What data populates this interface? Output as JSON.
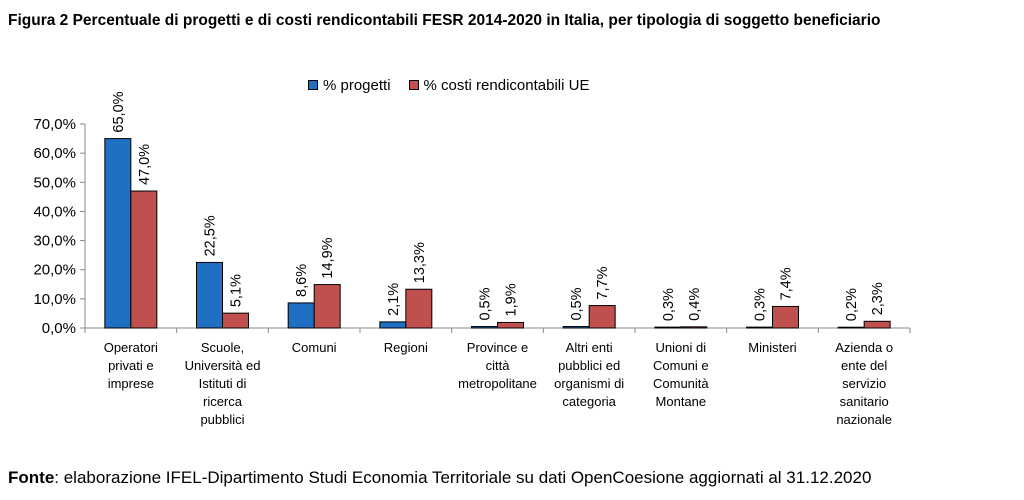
{
  "title": "Figura 2 Percentuale di progetti e di costi rendicontabili FESR 2014-2020 in Italia, per tipologia di soggetto beneficiario",
  "footer": {
    "label": "Fonte",
    "text": ": elaborazione IFEL-Dipartimento Studi Economia Territoriale su dati OpenCoesione aggiornati al 31.12.2020"
  },
  "chart_data": {
    "type": "bar",
    "categories": [
      [
        "Operatori",
        "privati e",
        "imprese"
      ],
      [
        "Scuole,",
        "Università ed",
        "Istituti di",
        "ricerca",
        "pubblici"
      ],
      [
        "Comuni"
      ],
      [
        "Regioni"
      ],
      [
        "Province e",
        "città",
        "metropolitane"
      ],
      [
        "Altri enti",
        "pubblici ed",
        "organismi di",
        "categoria"
      ],
      [
        "Unioni di",
        "Comuni e",
        "Comunità",
        "Montane"
      ],
      [
        "Ministeri"
      ],
      [
        "Azienda o",
        "ente del",
        "servizio",
        "sanitario",
        "nazionale"
      ]
    ],
    "series": [
      {
        "name": "% progetti",
        "color": "#1f6fc3",
        "values": [
          65.0,
          22.5,
          8.6,
          2.1,
          0.5,
          0.5,
          0.3,
          0.3,
          0.2
        ],
        "labels": [
          "65,0%",
          "22,5%",
          "8,6%",
          "2,1%",
          "0,5%",
          "0,5%",
          "0,3%",
          "0,3%",
          "0,2%"
        ]
      },
      {
        "name": "% costi rendicontabili UE",
        "color": "#c0504d",
        "values": [
          47.0,
          5.1,
          14.9,
          13.3,
          1.9,
          7.7,
          0.4,
          7.4,
          2.3
        ],
        "labels": [
          "47,0%",
          "5,1%",
          "14,9%",
          "13,3%",
          "1,9%",
          "7,7%",
          "0,4%",
          "7,4%",
          "2,3%"
        ]
      }
    ],
    "y_ticks": [
      "0,0%",
      "10,0%",
      "20,0%",
      "30,0%",
      "40,0%",
      "50,0%",
      "60,0%",
      "70,0%"
    ],
    "ylim": [
      0,
      70
    ],
    "xlabel": "",
    "ylabel": "",
    "grid": false,
    "legend_position": "top-center"
  }
}
